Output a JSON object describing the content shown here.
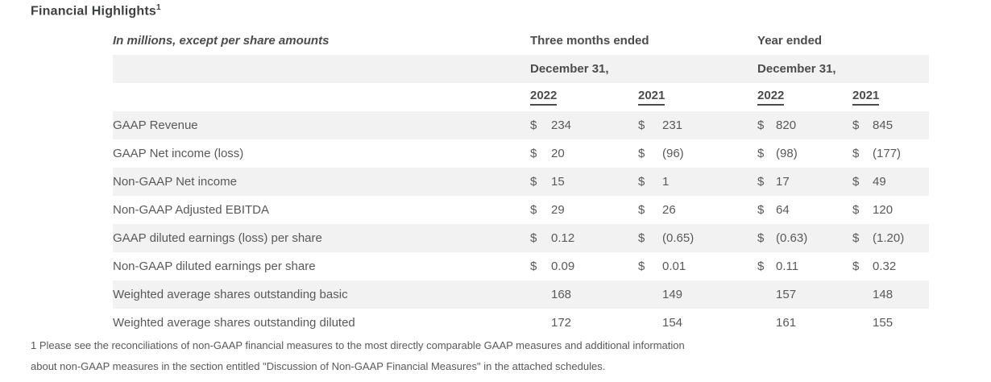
{
  "page": {
    "title": "Financial Highlights",
    "title_superscript": "1"
  },
  "table": {
    "caption": "In millions, except per share amounts",
    "dollar_sign": "$",
    "groups": [
      {
        "title": "Three months ended",
        "subtitle": "December 31,",
        "years": [
          "2022",
          "2021"
        ]
      },
      {
        "title": "Year ended",
        "subtitle": "December 31,",
        "years": [
          "2022",
          "2021"
        ]
      }
    ],
    "rows": [
      {
        "label": "GAAP Revenue",
        "dollar": true,
        "shaded": true,
        "values": [
          "234",
          "231",
          "820",
          "845"
        ]
      },
      {
        "label": "GAAP Net income (loss)",
        "dollar": true,
        "shaded": false,
        "values": [
          "20",
          "(96)",
          "(98)",
          "(177)"
        ]
      },
      {
        "label": "Non-GAAP Net income",
        "dollar": true,
        "shaded": true,
        "values": [
          "15",
          "1",
          "17",
          "49"
        ]
      },
      {
        "label": "Non-GAAP Adjusted EBITDA",
        "dollar": true,
        "shaded": false,
        "values": [
          "29",
          "26",
          "64",
          "120"
        ]
      },
      {
        "label": "GAAP diluted earnings (loss) per share",
        "dollar": true,
        "shaded": true,
        "values": [
          "0.12",
          "(0.65)",
          "(0.63)",
          "(1.20)"
        ]
      },
      {
        "label": "Non-GAAP diluted earnings per share",
        "dollar": true,
        "shaded": false,
        "values": [
          "0.09",
          "0.01",
          "0.11",
          "0.32"
        ]
      },
      {
        "label": "Weighted average shares outstanding basic",
        "dollar": false,
        "shaded": true,
        "values": [
          "168",
          "149",
          "157",
          "148"
        ]
      },
      {
        "label": "Weighted average shares outstanding diluted",
        "dollar": false,
        "shaded": false,
        "values": [
          "172",
          "154",
          "161",
          "155"
        ]
      }
    ]
  },
  "footnote": {
    "line1": "1 Please see the reconciliations of non-GAAP financial measures to the most directly comparable GAAP measures and additional information",
    "line2": "about non-GAAP measures in the section entitled \"Discussion of Non-GAAP Financial Measures\" in the attached schedules."
  },
  "colors": {
    "row_stripe": "#f2f2f2",
    "body_text": "#595959",
    "heading_text": "#4c4c4c"
  }
}
